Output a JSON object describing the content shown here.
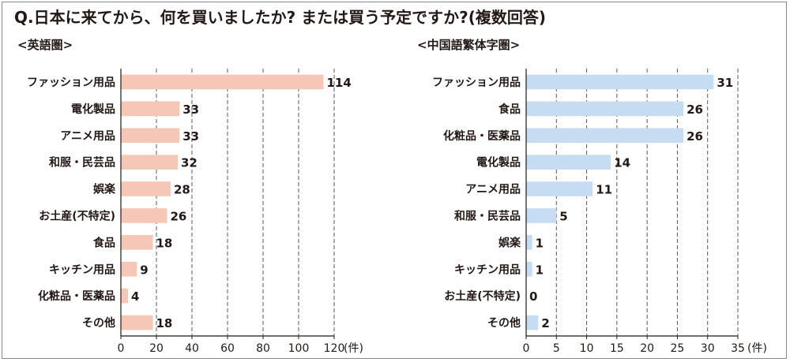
{
  "title": "Q.日本に来てから、何を買いましたか? または買う予定ですか?(複数回答)",
  "colors": {
    "english_bar": "#f6c7b6",
    "chinese_bar": "#c6dcf3",
    "axis": "#231815",
    "grid": "#555555"
  },
  "chart_data": [
    {
      "type": "bar",
      "orientation": "horizontal",
      "subtitle": "<英語圏>",
      "categories": [
        "ファッション用品",
        "電化製品",
        "アニメ用品",
        "和服・民芸品",
        "娯楽",
        "お土産(不特定)",
        "食品",
        "キッチン用品",
        "化粧品・医薬品",
        "その他"
      ],
      "values": [
        114,
        33,
        33,
        32,
        28,
        26,
        18,
        9,
        4,
        18
      ],
      "xlim": [
        0,
        120
      ],
      "ticks": [
        "0",
        "20",
        "40",
        "60",
        "80",
        "100",
        "120"
      ],
      "tick_values": [
        0,
        20,
        40,
        60,
        80,
        100,
        120
      ],
      "unit": "(件)",
      "grid": "vertical dashed"
    },
    {
      "type": "bar",
      "orientation": "horizontal",
      "subtitle": "<中国語繁体字圏>",
      "categories": [
        "ファッション用品",
        "食品",
        "化粧品・医薬品",
        "電化製品",
        "アニメ用品",
        "和服・民芸品",
        "娯楽",
        "キッチン用品",
        "お土産(不特定)",
        "その他"
      ],
      "values": [
        31,
        26,
        26,
        14,
        11,
        5,
        1,
        1,
        0,
        2
      ],
      "xlim": [
        0,
        35
      ],
      "ticks": [
        "0",
        "5",
        "10",
        "15",
        "20",
        "25",
        "30",
        "35"
      ],
      "tick_values": [
        0,
        5,
        10,
        15,
        20,
        25,
        30,
        35
      ],
      "unit": "(件)",
      "grid": "vertical dashed"
    }
  ]
}
